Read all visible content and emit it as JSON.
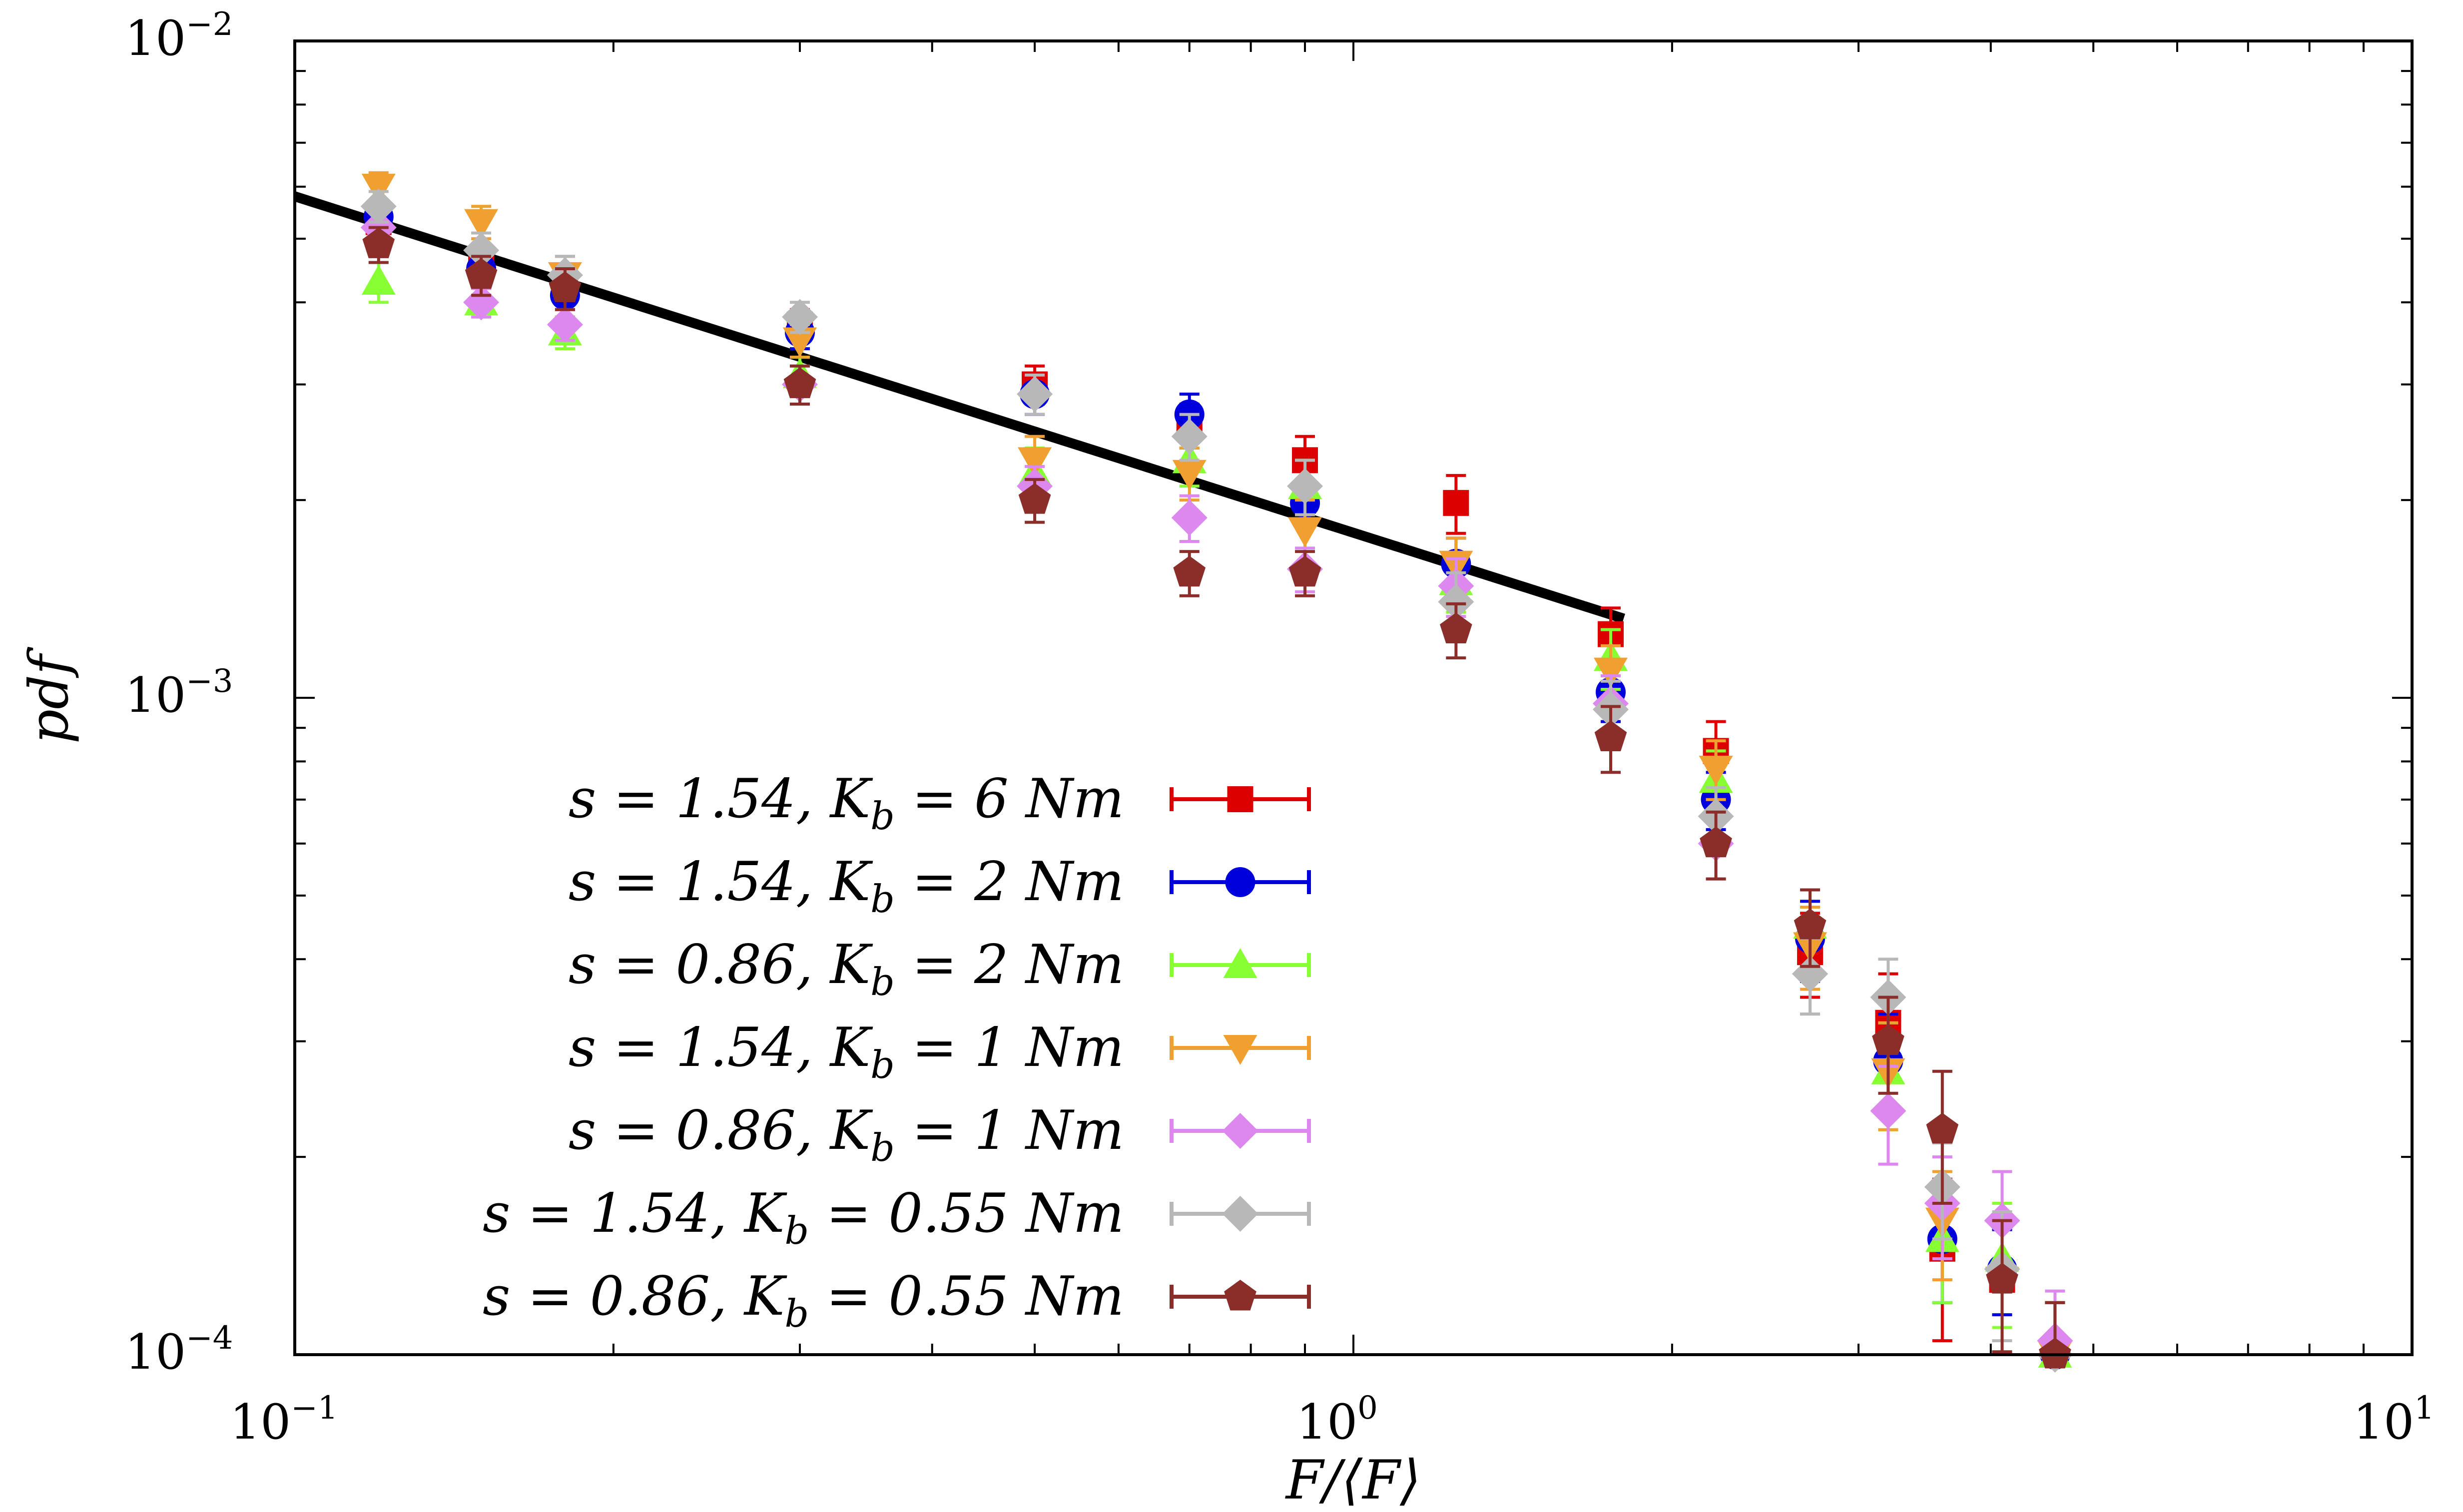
{
  "chart_data": {
    "type": "scatter",
    "title": "",
    "xlabel": "F/⟨F⟩",
    "ylabel": "pdf",
    "xscale": "log",
    "yscale": "log",
    "xlim": [
      0.1,
      10
    ],
    "ylim": [
      0.0001,
      0.01
    ],
    "x_ticks": [
      {
        "base": "10",
        "exp": "−1"
      },
      {
        "base": "10",
        "exp": "0"
      },
      {
        "base": "10",
        "exp": "1"
      }
    ],
    "y_ticks": [
      {
        "base": "10",
        "exp": "−4"
      },
      {
        "base": "10",
        "exp": "−3"
      },
      {
        "base": "10",
        "exp": "−2"
      }
    ],
    "legend_position": "bottom-left",
    "fit_line": {
      "x": [
        0.1,
        1.8
      ],
      "y": [
        0.0058,
        0.00132
      ],
      "color": "#000000"
    },
    "x": [
      0.12,
      0.15,
      0.18,
      0.3,
      0.5,
      0.7,
      0.9,
      1.25,
      1.75,
      2.2,
      2.7,
      3.2,
      3.6,
      4.1,
      4.6
    ],
    "series": [
      {
        "name": "s = 1.54, Kb = 6 Nm",
        "color": "#dd0000",
        "marker": "square",
        "values": [
          0.0053,
          0.0046,
          0.0042,
          0.0037,
          0.003,
          0.0026,
          0.0023,
          0.00198,
          0.00125,
          0.00083,
          0.00041,
          0.00032,
          0.000145,
          0.00013,
          0.0001
        ],
        "errors": [
          0.0003,
          0.0003,
          0.0003,
          0.0002,
          0.0002,
          0.0002,
          0.0002,
          0.0002,
          0.00012,
          9e-05,
          6e-05,
          6e-05,
          4e-05,
          3e-05,
          2e-05
        ]
      },
      {
        "name": "s = 1.54, Kb = 2 Nm",
        "color": "#0000dd",
        "marker": "circle",
        "values": [
          0.0054,
          0.0045,
          0.0041,
          0.0036,
          0.0029,
          0.0027,
          0.00198,
          0.0016,
          0.00102,
          0.0007,
          0.00043,
          0.00028,
          0.00015,
          0.000135,
          0.0001
        ],
        "errors": [
          0.0003,
          0.0003,
          0.0003,
          0.0002,
          0.0002,
          0.0002,
          0.00015,
          0.00015,
          0.0001,
          7e-05,
          6e-05,
          5e-05,
          3e-05,
          2e-05,
          2e-05
        ]
      },
      {
        "name": "s = 0.86, Kb = 2 Nm",
        "color": "#88ff33",
        "marker": "triangle-up",
        "values": [
          0.0043,
          0.004,
          0.0036,
          0.0031,
          0.0022,
          0.0023,
          0.0021,
          0.0015,
          0.00115,
          0.00075,
          0.00045,
          0.00027,
          0.00015,
          0.00014,
          0.0001
        ],
        "errors": [
          0.0003,
          0.0002,
          0.0002,
          0.0002,
          0.0002,
          0.0002,
          0.0002,
          0.00015,
          0.00012,
          8e-05,
          6e-05,
          5e-05,
          3e-05,
          3e-05,
          2e-05
        ]
      },
      {
        "name": "s = 1.54, Kb = 1 Nm",
        "color": "#f0a030",
        "marker": "triangle-down",
        "values": [
          0.006,
          0.0053,
          0.0044,
          0.0035,
          0.0023,
          0.0022,
          0.0018,
          0.0016,
          0.0011,
          0.00078,
          0.00042,
          0.00027,
          0.00016,
          0.00013,
          0.0001
        ],
        "errors": [
          0.0003,
          0.0003,
          0.0003,
          0.0002,
          0.0002,
          0.0002,
          0.0002,
          0.00015,
          0.0001,
          8e-05,
          6e-05,
          5e-05,
          3e-05,
          3e-05,
          2e-05
        ]
      },
      {
        "name": "s = 0.86, Kb = 1 Nm",
        "color": "#dd88ee",
        "marker": "diamond",
        "values": [
          0.0052,
          0.004,
          0.0037,
          0.003,
          0.0021,
          0.00188,
          0.00157,
          0.00148,
          0.00098,
          0.0006,
          0.00038,
          0.000235,
          0.00017,
          0.00016,
          0.000105
        ],
        "errors": [
          0.0003,
          0.0002,
          0.0002,
          0.0002,
          0.00015,
          0.00015,
          0.00012,
          0.00015,
          0.0001,
          7e-05,
          5e-05,
          4e-05,
          3e-05,
          3e-05,
          2e-05
        ]
      },
      {
        "name": "s = 1.54, Kb = 0.55 Nm",
        "color": "#b8b8b8",
        "marker": "diamond",
        "values": [
          0.0056,
          0.0048,
          0.0044,
          0.0038,
          0.0029,
          0.0025,
          0.0021,
          0.0014,
          0.00096,
          0.00066,
          0.00038,
          0.00035,
          0.00018,
          0.000135,
          0.0001
        ],
        "errors": [
          0.0003,
          0.0003,
          0.0003,
          0.0002,
          0.0002,
          0.0002,
          0.0002,
          0.00015,
          0.0001,
          7e-05,
          5e-05,
          5e-05,
          3e-05,
          3e-05,
          2e-05
        ]
      },
      {
        "name": "s = 0.86, Kb = 0.55 Nm",
        "color": "#8b2e2a",
        "marker": "pentagon",
        "values": [
          0.0049,
          0.0044,
          0.0042,
          0.003,
          0.002,
          0.00155,
          0.00155,
          0.00127,
          0.00087,
          0.0006,
          0.00045,
          0.0003,
          0.00022,
          0.00013,
          0.0001
        ],
        "errors": [
          0.0003,
          0.0003,
          0.0003,
          0.0002,
          0.00015,
          0.00012,
          0.00012,
          0.00012,
          0.0001,
          7e-05,
          6e-05,
          5e-05,
          5e-05,
          3e-05,
          2e-05
        ]
      }
    ]
  },
  "legend": [
    {
      "s_text": "s = 1.54,",
      "k_main": "K",
      "k_sub": "b",
      "k_rest": " = 6 Nm"
    },
    {
      "s_text": "s = 1.54,",
      "k_main": "K",
      "k_sub": "b",
      "k_rest": " = 2 Nm"
    },
    {
      "s_text": "s = 0.86,",
      "k_main": "K",
      "k_sub": "b",
      "k_rest": " = 2 Nm"
    },
    {
      "s_text": "s = 1.54,",
      "k_main": "K",
      "k_sub": "b",
      "k_rest": " = 1 Nm"
    },
    {
      "s_text": "s = 0.86,",
      "k_main": "K",
      "k_sub": "b",
      "k_rest": " = 1 Nm"
    },
    {
      "s_text": "s = 1.54,",
      "k_main": "K",
      "k_sub": "b",
      "k_rest": " = 0.55 Nm"
    },
    {
      "s_text": "s = 0.86,",
      "k_main": "K",
      "k_sub": "b",
      "k_rest": " = 0.55 Nm"
    }
  ]
}
